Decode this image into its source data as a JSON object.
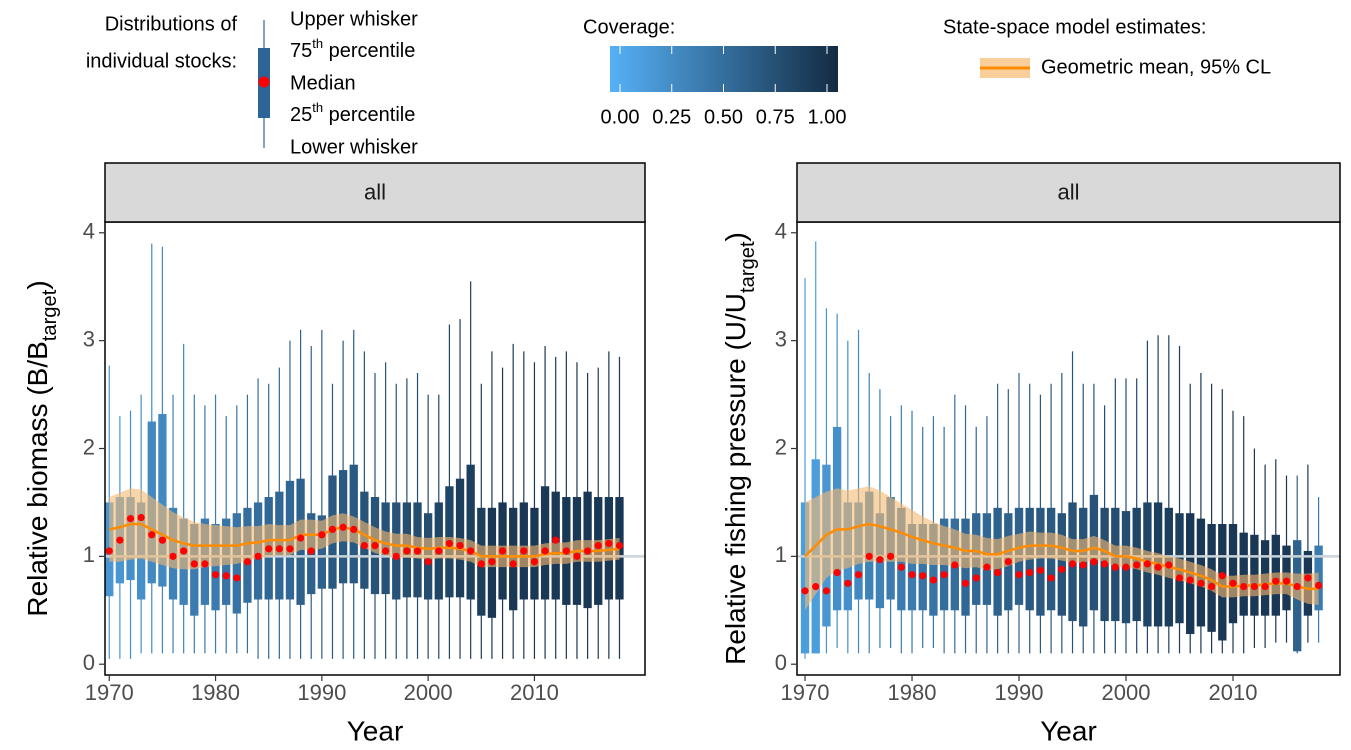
{
  "legend": {
    "distributions": {
      "title_lines": [
        "Distributions of",
        "individual stocks:"
      ],
      "items": [
        "Upper whisker",
        {
          "text": "75",
          "sup": "th",
          "rest": " percentile"
        },
        "Median",
        {
          "text": "25",
          "sup": "th",
          "rest": " percentile"
        },
        "Lower whisker"
      ],
      "box_color": "#2c6497",
      "median_color": "#ff0000"
    },
    "coverage": {
      "title": "Coverage:",
      "colors": [
        "#56b1f7",
        "#132b43"
      ],
      "ticks": [
        {
          "value": 0,
          "label": "0.00"
        },
        {
          "value": 0.25,
          "label": "0.25"
        },
        {
          "value": 0.5,
          "label": "0.50"
        },
        {
          "value": 0.75,
          "label": "0.75"
        },
        {
          "value": 1,
          "label": "1.00"
        }
      ]
    },
    "model": {
      "title": "State-space model estimates:",
      "label": "Geometric mean, 95% CL",
      "line_color": "#ff8c00",
      "band_color": "#f5b971"
    }
  },
  "chart_data": [
    {
      "type": "boxplot",
      "strip": "all",
      "y_label": {
        "text": "Relative biomass (B/B",
        "sub": "target",
        "end": ")"
      },
      "x_label": "Year",
      "xlim": [
        1969.6,
        2020.4
      ],
      "xticks": [
        1970,
        1980,
        1990,
        2000,
        2010
      ],
      "ylim": [
        -0.1,
        4.1
      ],
      "yticks": [
        0,
        1,
        2,
        3,
        4
      ],
      "reference_line": 1,
      "x": [
        1970,
        1971,
        1972,
        1973,
        1974,
        1975,
        1976,
        1977,
        1978,
        1979,
        1980,
        1981,
        1982,
        1983,
        1984,
        1985,
        1986,
        1987,
        1988,
        1989,
        1990,
        1991,
        1992,
        1993,
        1994,
        1995,
        1996,
        1997,
        1998,
        1999,
        2000,
        2001,
        2002,
        2003,
        2004,
        2005,
        2006,
        2007,
        2008,
        2009,
        2010,
        2011,
        2012,
        2013,
        2014,
        2015,
        2016,
        2017,
        2018
      ],
      "lower_whisker": [
        0.05,
        0.05,
        0.05,
        0.1,
        0.1,
        0.1,
        0.1,
        0.1,
        0.1,
        0.1,
        0.1,
        0.1,
        0.1,
        0.1,
        0.05,
        0.05,
        0.05,
        0.05,
        0.05,
        0.05,
        0.05,
        0.05,
        0.05,
        0.05,
        0.05,
        0.05,
        0.05,
        0.05,
        0.05,
        0.05,
        0.05,
        0.05,
        0.05,
        0.05,
        0.05,
        0.05,
        0.05,
        0.05,
        0.05,
        0.05,
        0.05,
        0.05,
        0.05,
        0.05,
        0.05,
        0.05,
        0.05,
        0.05,
        0.05
      ],
      "q25": [
        0.63,
        0.75,
        0.78,
        0.6,
        0.75,
        0.72,
        0.6,
        0.55,
        0.45,
        0.55,
        0.5,
        0.55,
        0.47,
        0.57,
        0.6,
        0.6,
        0.6,
        0.6,
        0.55,
        0.65,
        0.7,
        0.7,
        0.75,
        0.75,
        0.7,
        0.65,
        0.65,
        0.6,
        0.62,
        0.62,
        0.6,
        0.6,
        0.62,
        0.62,
        0.6,
        0.45,
        0.43,
        0.6,
        0.5,
        0.6,
        0.6,
        0.6,
        0.6,
        0.55,
        0.55,
        0.52,
        0.55,
        0.6,
        0.6
      ],
      "median": [
        1.05,
        1.15,
        1.35,
        1.36,
        1.2,
        1.15,
        1.0,
        1.05,
        0.93,
        0.93,
        0.83,
        0.82,
        0.8,
        0.95,
        1.0,
        1.07,
        1.07,
        1.07,
        1.17,
        1.05,
        1.2,
        1.25,
        1.27,
        1.25,
        1.1,
        1.1,
        1.05,
        1.0,
        1.05,
        1.05,
        0.95,
        1.05,
        1.12,
        1.1,
        1.05,
        0.93,
        0.95,
        1.05,
        0.93,
        1.05,
        0.95,
        1.05,
        1.15,
        1.05,
        1.0,
        1.05,
        1.1,
        1.12,
        1.1
      ],
      "q75": [
        1.5,
        1.55,
        1.55,
        1.5,
        2.25,
        2.32,
        1.45,
        1.35,
        1.3,
        1.35,
        1.3,
        1.35,
        1.4,
        1.45,
        1.5,
        1.55,
        1.6,
        1.7,
        1.72,
        1.4,
        1.38,
        1.75,
        1.8,
        1.85,
        1.6,
        1.55,
        1.5,
        1.5,
        1.5,
        1.5,
        1.4,
        1.5,
        1.65,
        1.72,
        1.85,
        1.45,
        1.45,
        1.5,
        1.45,
        1.5,
        1.45,
        1.65,
        1.6,
        1.55,
        1.55,
        1.6,
        1.55,
        1.55,
        1.55
      ],
      "upper_whisker": [
        2.77,
        2.3,
        2.35,
        2.5,
        3.9,
        3.87,
        2.5,
        2.97,
        2.5,
        2.4,
        2.5,
        2.3,
        2.4,
        2.5,
        2.65,
        2.6,
        2.75,
        3.0,
        3.1,
        2.95,
        3.1,
        2.6,
        3.0,
        3.1,
        2.9,
        2.7,
        2.8,
        2.6,
        2.65,
        2.7,
        2.5,
        2.5,
        3.15,
        3.2,
        3.55,
        2.6,
        2.9,
        2.75,
        2.97,
        2.9,
        2.8,
        2.95,
        2.85,
        2.9,
        2.8,
        2.7,
        2.75,
        2.9,
        2.85
      ],
      "coverage": [
        0.2,
        0.2,
        0.25,
        0.25,
        0.3,
        0.3,
        0.35,
        0.35,
        0.4,
        0.4,
        0.4,
        0.45,
        0.45,
        0.5,
        0.5,
        0.55,
        0.55,
        0.55,
        0.6,
        0.6,
        0.6,
        0.65,
        0.65,
        0.65,
        0.7,
        0.7,
        0.7,
        0.7,
        0.75,
        0.75,
        0.75,
        0.8,
        0.8,
        0.85,
        0.85,
        0.85,
        0.9,
        0.9,
        0.9,
        0.9,
        0.9,
        0.9,
        0.9,
        0.9,
        0.9,
        0.9,
        0.9,
        0.9,
        0.9
      ],
      "gm": [
        1.25,
        1.27,
        1.3,
        1.3,
        1.25,
        1.2,
        1.15,
        1.12,
        1.1,
        1.1,
        1.1,
        1.1,
        1.1,
        1.12,
        1.13,
        1.15,
        1.15,
        1.15,
        1.2,
        1.2,
        1.2,
        1.25,
        1.27,
        1.25,
        1.2,
        1.15,
        1.12,
        1.1,
        1.1,
        1.08,
        1.07,
        1.08,
        1.08,
        1.07,
        1.05,
        1.0,
        1.0,
        1.0,
        1.0,
        1.0,
        1.0,
        1.02,
        1.03,
        1.03,
        1.05,
        1.05,
        1.05,
        1.06,
        1.07
      ],
      "gm_lower": [
        0.95,
        0.95,
        0.97,
        0.98,
        0.95,
        0.92,
        0.89,
        0.88,
        0.88,
        0.9,
        0.91,
        0.92,
        0.93,
        0.96,
        0.98,
        1.0,
        1.01,
        1.01,
        1.06,
        1.06,
        1.07,
        1.12,
        1.14,
        1.13,
        1.08,
        1.03,
        1.01,
        0.99,
        0.99,
        0.98,
        0.97,
        0.98,
        0.98,
        0.97,
        0.95,
        0.9,
        0.9,
        0.9,
        0.9,
        0.9,
        0.9,
        0.92,
        0.93,
        0.93,
        0.95,
        0.95,
        0.95,
        0.96,
        0.97
      ],
      "gm_upper": [
        1.55,
        1.59,
        1.63,
        1.62,
        1.55,
        1.48,
        1.41,
        1.36,
        1.32,
        1.3,
        1.29,
        1.28,
        1.27,
        1.28,
        1.28,
        1.3,
        1.29,
        1.29,
        1.34,
        1.34,
        1.33,
        1.38,
        1.4,
        1.37,
        1.32,
        1.27,
        1.23,
        1.21,
        1.21,
        1.18,
        1.17,
        1.18,
        1.18,
        1.17,
        1.15,
        1.1,
        1.1,
        1.1,
        1.1,
        1.1,
        1.1,
        1.12,
        1.13,
        1.13,
        1.15,
        1.15,
        1.15,
        1.16,
        1.17
      ]
    },
    {
      "type": "boxplot",
      "strip": "all",
      "y_label": {
        "text": "Relative fishing pressure (U/U",
        "sub": "target",
        "end": ")"
      },
      "x_label": "Year",
      "xlim": [
        1969.25,
        2020.0
      ],
      "xticks": [
        1970,
        1980,
        1990,
        2000,
        2010
      ],
      "ylim": [
        -0.1,
        4.1
      ],
      "yticks": [
        0,
        1,
        2,
        3,
        4
      ],
      "reference_line": 1,
      "x": [
        1970,
        1971,
        1972,
        1973,
        1974,
        1975,
        1976,
        1977,
        1978,
        1979,
        1980,
        1981,
        1982,
        1983,
        1984,
        1985,
        1986,
        1987,
        1988,
        1989,
        1990,
        1991,
        1992,
        1993,
        1994,
        1995,
        1996,
        1997,
        1998,
        1999,
        2000,
        2001,
        2002,
        2003,
        2004,
        2005,
        2006,
        2007,
        2008,
        2009,
        2010,
        2011,
        2012,
        2013,
        2014,
        2015,
        2016,
        2017,
        2018
      ],
      "lower_whisker": [
        0.05,
        0.1,
        0.1,
        0.15,
        0.1,
        0.1,
        0.1,
        0.15,
        0.15,
        0.1,
        0.1,
        0.15,
        0.15,
        0.1,
        0.1,
        0.1,
        0.1,
        0.1,
        0.1,
        0.1,
        0.1,
        0.1,
        0.1,
        0.1,
        0.1,
        0.1,
        0.1,
        0.1,
        0.1,
        0.1,
        0.1,
        0.1,
        0.1,
        0.1,
        0.1,
        0.1,
        0.1,
        0.1,
        0.1,
        0.1,
        0.1,
        0.1,
        0.15,
        0.15,
        0.2,
        0.2,
        0.1,
        0.2,
        0.2
      ],
      "q25": [
        0.1,
        0.1,
        0.35,
        0.5,
        0.5,
        0.6,
        0.6,
        0.52,
        0.6,
        0.5,
        0.5,
        0.5,
        0.45,
        0.5,
        0.5,
        0.45,
        0.55,
        0.55,
        0.45,
        0.5,
        0.55,
        0.5,
        0.45,
        0.5,
        0.45,
        0.4,
        0.35,
        0.5,
        0.4,
        0.4,
        0.38,
        0.4,
        0.35,
        0.35,
        0.35,
        0.38,
        0.28,
        0.35,
        0.3,
        0.22,
        0.38,
        0.45,
        0.45,
        0.45,
        0.45,
        0.5,
        0.12,
        0.45,
        0.5
      ],
      "median": [
        0.68,
        0.72,
        0.68,
        0.85,
        0.75,
        0.83,
        1.0,
        0.97,
        1.0,
        0.9,
        0.83,
        0.82,
        0.78,
        0.83,
        0.92,
        0.75,
        0.8,
        0.9,
        0.85,
        0.95,
        0.83,
        0.85,
        0.87,
        0.8,
        0.88,
        0.93,
        0.92,
        0.95,
        0.93,
        0.9,
        0.9,
        0.92,
        0.93,
        0.9,
        0.92,
        0.8,
        0.78,
        0.75,
        0.72,
        0.82,
        0.75,
        0.72,
        0.72,
        0.72,
        0.77,
        0.77,
        0.72,
        0.8,
        0.73
      ],
      "q75": [
        1.5,
        1.9,
        1.85,
        2.2,
        1.5,
        1.5,
        1.6,
        1.4,
        1.55,
        1.45,
        1.3,
        1.3,
        1.3,
        1.35,
        1.35,
        1.35,
        1.4,
        1.4,
        1.45,
        1.4,
        1.45,
        1.45,
        1.45,
        1.45,
        1.4,
        1.5,
        1.45,
        1.57,
        1.45,
        1.45,
        1.42,
        1.45,
        1.5,
        1.5,
        1.45,
        1.4,
        1.4,
        1.35,
        1.3,
        1.3,
        1.3,
        1.22,
        1.2,
        1.15,
        1.2,
        1.1,
        1.15,
        1.05,
        1.1
      ],
      "upper_whisker": [
        3.58,
        3.92,
        3.3,
        3.25,
        3.0,
        3.1,
        2.7,
        2.55,
        2.3,
        2.4,
        2.35,
        2.2,
        2.3,
        2.2,
        2.5,
        2.4,
        2.2,
        2.3,
        2.6,
        2.55,
        2.7,
        2.6,
        2.5,
        2.6,
        2.7,
        2.9,
        2.6,
        2.6,
        2.4,
        2.65,
        2.65,
        2.65,
        3.0,
        3.05,
        3.05,
        2.95,
        2.6,
        2.7,
        2.6,
        2.55,
        2.35,
        2.3,
        2.0,
        1.85,
        1.9,
        1.75,
        1.75,
        1.85,
        1.55
      ],
      "coverage": [
        0.15,
        0.15,
        0.2,
        0.25,
        0.25,
        0.3,
        0.35,
        0.35,
        0.4,
        0.4,
        0.4,
        0.45,
        0.45,
        0.5,
        0.5,
        0.55,
        0.55,
        0.55,
        0.6,
        0.6,
        0.6,
        0.65,
        0.65,
        0.65,
        0.7,
        0.7,
        0.7,
        0.7,
        0.75,
        0.75,
        0.75,
        0.8,
        0.8,
        0.85,
        0.85,
        0.85,
        0.9,
        0.9,
        0.9,
        0.9,
        0.9,
        0.9,
        0.9,
        0.9,
        0.9,
        0.9,
        0.6,
        0.9,
        0.4
      ],
      "gm": [
        1.0,
        1.1,
        1.2,
        1.25,
        1.25,
        1.28,
        1.3,
        1.28,
        1.25,
        1.22,
        1.18,
        1.15,
        1.12,
        1.1,
        1.08,
        1.05,
        1.05,
        1.02,
        1.02,
        1.05,
        1.08,
        1.1,
        1.1,
        1.1,
        1.08,
        1.05,
        1.05,
        1.08,
        1.05,
        1.0,
        1.0,
        0.98,
        0.95,
        0.93,
        0.9,
        0.88,
        0.85,
        0.82,
        0.78,
        0.72,
        0.72,
        0.73,
        0.73,
        0.74,
        0.75,
        0.75,
        0.72,
        0.7,
        0.7
      ],
      "gm_lower": [
        0.5,
        0.65,
        0.8,
        0.87,
        0.89,
        0.93,
        0.95,
        0.95,
        0.95,
        0.95,
        0.93,
        0.93,
        0.92,
        0.92,
        0.91,
        0.89,
        0.9,
        0.87,
        0.88,
        0.91,
        0.95,
        0.97,
        0.98,
        0.98,
        0.96,
        0.94,
        0.94,
        0.97,
        0.95,
        0.9,
        0.9,
        0.88,
        0.85,
        0.83,
        0.8,
        0.78,
        0.75,
        0.72,
        0.68,
        0.62,
        0.62,
        0.63,
        0.63,
        0.64,
        0.65,
        0.65,
        0.6,
        0.56,
        0.55
      ],
      "gm_upper": [
        1.5,
        1.55,
        1.6,
        1.63,
        1.61,
        1.63,
        1.65,
        1.61,
        1.55,
        1.49,
        1.43,
        1.37,
        1.32,
        1.28,
        1.25,
        1.21,
        1.2,
        1.17,
        1.16,
        1.19,
        1.21,
        1.23,
        1.22,
        1.22,
        1.2,
        1.16,
        1.16,
        1.19,
        1.15,
        1.1,
        1.1,
        1.08,
        1.05,
        1.03,
        1.0,
        0.98,
        0.95,
        0.92,
        0.88,
        0.82,
        0.82,
        0.83,
        0.83,
        0.84,
        0.85,
        0.85,
        0.84,
        0.84,
        0.85
      ]
    }
  ]
}
